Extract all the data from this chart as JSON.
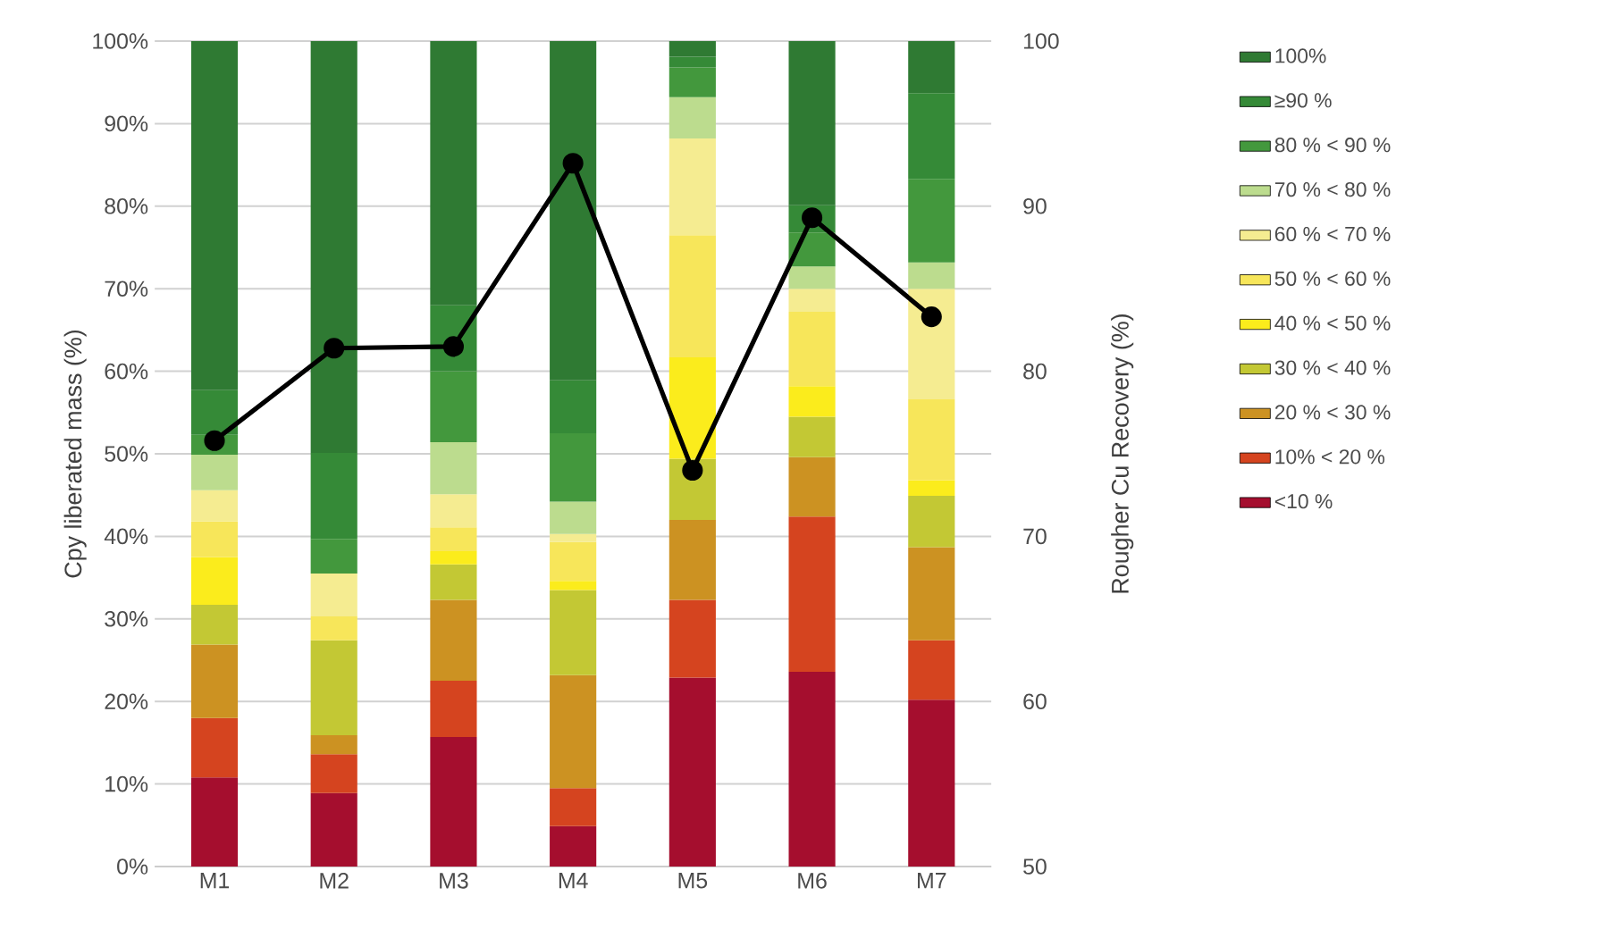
{
  "chart_data": {
    "type": "bar",
    "stacked": true,
    "categories": [
      "M1",
      "M2",
      "M3",
      "M4",
      "M5",
      "M6",
      "M7"
    ],
    "ylabel": "Cpy liberated mass (%)",
    "y2label": "Rougher Cu Recovery (%)",
    "ylim": [
      0,
      100
    ],
    "yticks": [
      {
        "value": 0,
        "label": "0%"
      },
      {
        "value": 10,
        "label": "10%"
      },
      {
        "value": 20,
        "label": "20%"
      },
      {
        "value": 30,
        "label": "30%"
      },
      {
        "value": 40,
        "label": "40%"
      },
      {
        "value": 50,
        "label": "50%"
      },
      {
        "value": 60,
        "label": "60%"
      },
      {
        "value": 70,
        "label": "70%"
      },
      {
        "value": 80,
        "label": "80%"
      },
      {
        "value": 90,
        "label": "90%"
      },
      {
        "value": 100,
        "label": "100%"
      }
    ],
    "y2lim": [
      50,
      100
    ],
    "y2ticks": [
      50,
      60,
      70,
      80,
      90,
      100
    ],
    "grid": "y",
    "legend": "right",
    "series": [
      {
        "name": "<10 %",
        "color": "#a50e2e",
        "values": [
          10.8,
          8.9,
          15.7,
          4.9,
          22.9,
          23.6,
          20.2
        ]
      },
      {
        "name": "10% < 20 %",
        "color": "#d5441f",
        "values": [
          7.2,
          4.7,
          6.8,
          4.6,
          9.4,
          18.8,
          7.2
        ]
      },
      {
        "name": "20 % < 30 %",
        "color": "#cc9222",
        "values": [
          8.9,
          2.3,
          9.8,
          13.7,
          9.7,
          7.2,
          11.3
        ]
      },
      {
        "name": "30 % < 40 %",
        "color": "#c3c834",
        "values": [
          4.8,
          11.5,
          4.3,
          10.3,
          7.4,
          4.9,
          6.2
        ]
      },
      {
        "name": "40 % < 50 %",
        "color": "#fbec1c",
        "values": [
          5.8,
          0,
          1.6,
          1.1,
          12.3,
          3.7,
          1.9
        ]
      },
      {
        "name": "50 % < 60 %",
        "color": "#f7e65a",
        "values": [
          4.3,
          2.9,
          2.9,
          4.7,
          14.8,
          9.0,
          9.8
        ]
      },
      {
        "name": "60 % < 70 %",
        "color": "#f5ec91",
        "values": [
          3.8,
          5.2,
          4.0,
          1.0,
          11.7,
          2.8,
          13.4
        ]
      },
      {
        "name": "70 % < 80 %",
        "color": "#bcdc8e",
        "values": [
          4.3,
          0,
          6.3,
          3.9,
          5.0,
          2.7,
          3.2
        ]
      },
      {
        "name": "80 % < 90 %",
        "color": "#43983d",
        "values": [
          2.4,
          4.2,
          8.6,
          8.3,
          3.6,
          4.1,
          10.1
        ]
      },
      {
        "name": "≥90 %",
        "color": "#358a37",
        "values": [
          5.4,
          10.4,
          8.0,
          6.4,
          1.3,
          3.3,
          10.4
        ]
      },
      {
        "name": "100%",
        "color": "#2f7a33",
        "values": [
          42.3,
          49.9,
          32.0,
          41.1,
          1.9,
          19.9,
          6.3
        ]
      },
      {
        "type": "line",
        "axis": "y2",
        "color": "#000000",
        "marker": "circle",
        "values": [
          75.8,
          81.4,
          81.5,
          92.6,
          74.0,
          89.3,
          83.3
        ]
      }
    ]
  }
}
